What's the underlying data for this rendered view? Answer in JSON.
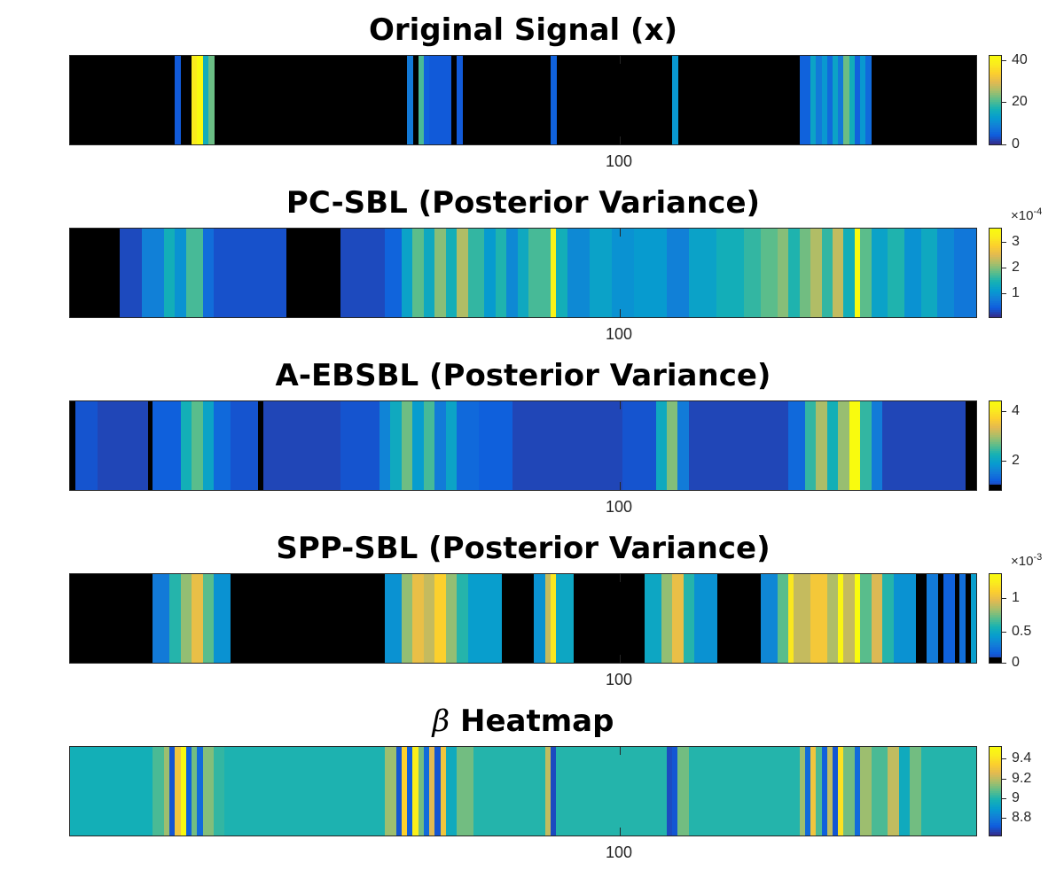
{
  "chart_data": [
    {
      "type": "heatmap",
      "title": "Original Signal (x)",
      "xtick": "100",
      "colorbar": {
        "min": 0,
        "max": 42,
        "ticks": [
          0,
          20,
          40
        ],
        "tick_labels": [
          "0",
          "20",
          "40"
        ],
        "exponent": ""
      },
      "zero_color": "#000000",
      "x_range": [
        1,
        164
      ],
      "cells": [
        {
          "from": 20,
          "to": 20,
          "value": 4
        },
        {
          "from": 23,
          "to": 23,
          "value": 38
        },
        {
          "from": 24,
          "to": 24,
          "value": 42
        },
        {
          "from": 25,
          "to": 25,
          "value": 16
        },
        {
          "from": 26,
          "to": 26,
          "value": 22
        },
        {
          "from": 62,
          "to": 62,
          "value": 8
        },
        {
          "from": 64,
          "to": 64,
          "value": 20
        },
        {
          "from": 65,
          "to": 65,
          "value": 5
        },
        {
          "from": 66,
          "to": 69,
          "value": 4
        },
        {
          "from": 71,
          "to": 71,
          "value": 4
        },
        {
          "from": 88,
          "to": 88,
          "value": 5
        },
        {
          "from": 110,
          "to": 110,
          "value": 12
        },
        {
          "from": 133,
          "to": 134,
          "value": 5
        },
        {
          "from": 135,
          "to": 135,
          "value": 14
        },
        {
          "from": 136,
          "to": 136,
          "value": 8
        },
        {
          "from": 137,
          "to": 137,
          "value": 12
        },
        {
          "from": 138,
          "to": 138,
          "value": 6
        },
        {
          "from": 139,
          "to": 139,
          "value": 14
        },
        {
          "from": 140,
          "to": 140,
          "value": 8
        },
        {
          "from": 141,
          "to": 141,
          "value": 22
        },
        {
          "from": 142,
          "to": 142,
          "value": 16
        },
        {
          "from": 143,
          "to": 143,
          "value": 5
        },
        {
          "from": 144,
          "to": 144,
          "value": 12
        },
        {
          "from": 145,
          "to": 145,
          "value": 6
        }
      ]
    },
    {
      "type": "heatmap",
      "title": "PC-SBL (Posterior Variance)",
      "xtick": "100",
      "colorbar": {
        "min": 0.08,
        "max": 3.5,
        "ticks": [
          1,
          2,
          3
        ],
        "tick_labels": [
          "1",
          "2",
          "3"
        ],
        "exponent": "-4"
      },
      "zero_color": "#000000",
      "x_range": [
        1,
        164
      ],
      "cells": [
        {
          "from": 10,
          "to": 13,
          "value": 0.3
        },
        {
          "from": 14,
          "to": 17,
          "value": 0.8
        },
        {
          "from": 18,
          "to": 19,
          "value": 1.4
        },
        {
          "from": 20,
          "to": 21,
          "value": 1.0
        },
        {
          "from": 22,
          "to": 24,
          "value": 1.7
        },
        {
          "from": 25,
          "to": 26,
          "value": 0.6
        },
        {
          "from": 27,
          "to": 39,
          "value": 0.35
        },
        {
          "from": 50,
          "to": 57,
          "value": 0.3
        },
        {
          "from": 58,
          "to": 60,
          "value": 0.5
        },
        {
          "from": 61,
          "to": 62,
          "value": 1.2
        },
        {
          "from": 63,
          "to": 64,
          "value": 1.8
        },
        {
          "from": 65,
          "to": 66,
          "value": 1.3
        },
        {
          "from": 67,
          "to": 68,
          "value": 2.0
        },
        {
          "from": 69,
          "to": 70,
          "value": 1.4
        },
        {
          "from": 71,
          "to": 72,
          "value": 2.2
        },
        {
          "from": 73,
          "to": 75,
          "value": 1.6
        },
        {
          "from": 76,
          "to": 77,
          "value": 1.1
        },
        {
          "from": 78,
          "to": 79,
          "value": 1.5
        },
        {
          "from": 80,
          "to": 81,
          "value": 0.9
        },
        {
          "from": 82,
          "to": 83,
          "value": 1.3
        },
        {
          "from": 84,
          "to": 87,
          "value": 1.7
        },
        {
          "from": 88,
          "to": 88,
          "value": 3.3
        },
        {
          "from": 89,
          "to": 90,
          "value": 1.4
        },
        {
          "from": 91,
          "to": 94,
          "value": 0.9
        },
        {
          "from": 95,
          "to": 98,
          "value": 1.2
        },
        {
          "from": 99,
          "to": 102,
          "value": 1.0
        },
        {
          "from": 103,
          "to": 108,
          "value": 1.1
        },
        {
          "from": 109,
          "to": 112,
          "value": 0.8
        },
        {
          "from": 113,
          "to": 117,
          "value": 1.2
        },
        {
          "from": 118,
          "to": 122,
          "value": 1.4
        },
        {
          "from": 123,
          "to": 125,
          "value": 1.6
        },
        {
          "from": 126,
          "to": 128,
          "value": 1.8
        },
        {
          "from": 129,
          "to": 130,
          "value": 2.0
        },
        {
          "from": 131,
          "to": 132,
          "value": 1.5
        },
        {
          "from": 133,
          "to": 134,
          "value": 1.9
        },
        {
          "from": 135,
          "to": 136,
          "value": 2.2
        },
        {
          "from": 137,
          "to": 138,
          "value": 1.6
        },
        {
          "from": 139,
          "to": 140,
          "value": 2.3
        },
        {
          "from": 141,
          "to": 142,
          "value": 1.4
        },
        {
          "from": 143,
          "to": 143,
          "value": 3.5
        },
        {
          "from": 144,
          "to": 145,
          "value": 1.8
        },
        {
          "from": 146,
          "to": 148,
          "value": 1.2
        },
        {
          "from": 149,
          "to": 151,
          "value": 1.5
        },
        {
          "from": 152,
          "to": 154,
          "value": 1.0
        },
        {
          "from": 155,
          "to": 157,
          "value": 1.3
        },
        {
          "from": 158,
          "to": 160,
          "value": 0.9
        },
        {
          "from": 161,
          "to": 164,
          "value": 0.7
        }
      ]
    },
    {
      "type": "heatmap",
      "title": "A-EBSBL (Posterior Variance)",
      "xtick": "100",
      "colorbar": {
        "min": 0.8,
        "max": 4.4,
        "ticks": [
          2,
          4
        ],
        "tick_labels": [
          "2",
          "4"
        ],
        "exponent": ""
      },
      "zero_color": "#000000",
      "x_range": [
        1,
        164
      ],
      "cells": [
        {
          "from": 2,
          "to": 5,
          "value": 1.1
        },
        {
          "from": 6,
          "to": 14,
          "value": 1.0
        },
        {
          "from": 16,
          "to": 20,
          "value": 1.2
        },
        {
          "from": 21,
          "to": 22,
          "value": 2.2
        },
        {
          "from": 23,
          "to": 24,
          "value": 2.6
        },
        {
          "from": 25,
          "to": 26,
          "value": 2.0
        },
        {
          "from": 27,
          "to": 29,
          "value": 1.3
        },
        {
          "from": 30,
          "to": 34,
          "value": 1.1
        },
        {
          "from": 36,
          "to": 49,
          "value": 1.0
        },
        {
          "from": 50,
          "to": 56,
          "value": 1.1
        },
        {
          "from": 57,
          "to": 58,
          "value": 1.6
        },
        {
          "from": 59,
          "to": 60,
          "value": 2.1
        },
        {
          "from": 61,
          "to": 62,
          "value": 2.7
        },
        {
          "from": 63,
          "to": 64,
          "value": 1.9
        },
        {
          "from": 65,
          "to": 66,
          "value": 2.5
        },
        {
          "from": 67,
          "to": 68,
          "value": 1.5
        },
        {
          "from": 69,
          "to": 70,
          "value": 2.0
        },
        {
          "from": 71,
          "to": 74,
          "value": 1.3
        },
        {
          "from": 75,
          "to": 80,
          "value": 1.2
        },
        {
          "from": 81,
          "to": 100,
          "value": 1.0
        },
        {
          "from": 101,
          "to": 106,
          "value": 1.1
        },
        {
          "from": 107,
          "to": 108,
          "value": 2.1
        },
        {
          "from": 109,
          "to": 110,
          "value": 2.8
        },
        {
          "from": 111,
          "to": 112,
          "value": 1.5
        },
        {
          "from": 113,
          "to": 130,
          "value": 1.0
        },
        {
          "from": 131,
          "to": 133,
          "value": 1.3
        },
        {
          "from": 134,
          "to": 135,
          "value": 2.4
        },
        {
          "from": 136,
          "to": 137,
          "value": 3.0
        },
        {
          "from": 138,
          "to": 139,
          "value": 2.2
        },
        {
          "from": 140,
          "to": 141,
          "value": 2.9
        },
        {
          "from": 142,
          "to": 143,
          "value": 4.4
        },
        {
          "from": 144,
          "to": 145,
          "value": 2.4
        },
        {
          "from": 146,
          "to": 147,
          "value": 1.5
        },
        {
          "from": 148,
          "to": 162,
          "value": 1.0
        }
      ]
    },
    {
      "type": "heatmap",
      "title": "SPP-SBL (Posterior Variance)",
      "xtick": "100",
      "colorbar": {
        "min": 0.05,
        "max": 1.35,
        "ticks": [
          0,
          0.5,
          1
        ],
        "tick_labels": [
          "0",
          "0.5",
          "1"
        ],
        "exponent": "-3"
      },
      "zero_color": "#000000",
      "x_range": [
        1,
        164
      ],
      "cells": [
        {
          "from": 16,
          "to": 18,
          "value": 0.3
        },
        {
          "from": 19,
          "to": 20,
          "value": 0.6
        },
        {
          "from": 21,
          "to": 22,
          "value": 0.8
        },
        {
          "from": 23,
          "to": 24,
          "value": 1.0
        },
        {
          "from": 25,
          "to": 26,
          "value": 0.7
        },
        {
          "from": 27,
          "to": 29,
          "value": 0.4
        },
        {
          "from": 58,
          "to": 60,
          "value": 0.4
        },
        {
          "from": 61,
          "to": 62,
          "value": 0.8
        },
        {
          "from": 63,
          "to": 64,
          "value": 1.0
        },
        {
          "from": 65,
          "to": 66,
          "value": 0.9
        },
        {
          "from": 67,
          "to": 68,
          "value": 1.1
        },
        {
          "from": 69,
          "to": 70,
          "value": 0.8
        },
        {
          "from": 71,
          "to": 72,
          "value": 0.6
        },
        {
          "from": 73,
          "to": 78,
          "value": 0.45
        },
        {
          "from": 85,
          "to": 86,
          "value": 0.4
        },
        {
          "from": 87,
          "to": 87,
          "value": 0.9
        },
        {
          "from": 88,
          "to": 88,
          "value": 1.2
        },
        {
          "from": 89,
          "to": 91,
          "value": 0.5
        },
        {
          "from": 105,
          "to": 107,
          "value": 0.5
        },
        {
          "from": 108,
          "to": 109,
          "value": 0.8
        },
        {
          "from": 110,
          "to": 111,
          "value": 1.0
        },
        {
          "from": 112,
          "to": 113,
          "value": 0.6
        },
        {
          "from": 114,
          "to": 117,
          "value": 0.4
        },
        {
          "from": 126,
          "to": 128,
          "value": 0.35
        },
        {
          "from": 129,
          "to": 130,
          "value": 0.7
        },
        {
          "from": 131,
          "to": 131,
          "value": 1.2
        },
        {
          "from": 132,
          "to": 134,
          "value": 0.9
        },
        {
          "from": 135,
          "to": 137,
          "value": 1.05
        },
        {
          "from": 138,
          "to": 139,
          "value": 0.85
        },
        {
          "from": 140,
          "to": 140,
          "value": 1.3
        },
        {
          "from": 141,
          "to": 142,
          "value": 0.9
        },
        {
          "from": 143,
          "to": 143,
          "value": 1.35
        },
        {
          "from": 144,
          "to": 145,
          "value": 0.7
        },
        {
          "from": 146,
          "to": 147,
          "value": 0.95
        },
        {
          "from": 148,
          "to": 149,
          "value": 0.6
        },
        {
          "from": 150,
          "to": 153,
          "value": 0.4
        },
        {
          "from": 156,
          "to": 157,
          "value": 0.3
        },
        {
          "from": 159,
          "to": 160,
          "value": 0.2
        },
        {
          "from": 162,
          "to": 162,
          "value": 0.25
        },
        {
          "from": 164,
          "to": 164,
          "value": 0.45
        }
      ]
    },
    {
      "type": "heatmap",
      "title": "β Heatmap",
      "title_symbol": "β",
      "title_text": " Heatmap",
      "xtick": "100",
      "colorbar": {
        "min": 8.62,
        "max": 9.52,
        "ticks": [
          8.8,
          9,
          9.2,
          9.4
        ],
        "tick_labels": [
          "8.8",
          "9",
          "9.2",
          "9.4"
        ],
        "exponent": ""
      },
      "zero_color": "#000000",
      "x_range": [
        1,
        164
      ],
      "background_value": 8.98,
      "cells": [
        {
          "from": 1,
          "to": 15,
          "value": 8.97
        },
        {
          "from": 16,
          "to": 17,
          "value": 9.05
        },
        {
          "from": 18,
          "to": 18,
          "value": 9.15
        },
        {
          "from": 19,
          "to": 19,
          "value": 8.7
        },
        {
          "from": 20,
          "to": 20,
          "value": 9.3
        },
        {
          "from": 21,
          "to": 21,
          "value": 9.5
        },
        {
          "from": 22,
          "to": 22,
          "value": 8.72
        },
        {
          "from": 23,
          "to": 23,
          "value": 9.1
        },
        {
          "from": 24,
          "to": 24,
          "value": 8.75
        },
        {
          "from": 25,
          "to": 26,
          "value": 9.12
        },
        {
          "from": 27,
          "to": 28,
          "value": 9.02
        },
        {
          "from": 29,
          "to": 57,
          "value": 8.99
        },
        {
          "from": 58,
          "to": 59,
          "value": 9.15
        },
        {
          "from": 60,
          "to": 60,
          "value": 8.7
        },
        {
          "from": 61,
          "to": 61,
          "value": 9.35
        },
        {
          "from": 62,
          "to": 62,
          "value": 8.72
        },
        {
          "from": 63,
          "to": 63,
          "value": 9.45
        },
        {
          "from": 64,
          "to": 64,
          "value": 9.1
        },
        {
          "from": 65,
          "to": 65,
          "value": 8.75
        },
        {
          "from": 66,
          "to": 66,
          "value": 9.25
        },
        {
          "from": 67,
          "to": 67,
          "value": 8.7
        },
        {
          "from": 68,
          "to": 68,
          "value": 9.3
        },
        {
          "from": 69,
          "to": 70,
          "value": 8.95
        },
        {
          "from": 71,
          "to": 73,
          "value": 9.1
        },
        {
          "from": 74,
          "to": 86,
          "value": 9.0
        },
        {
          "from": 87,
          "to": 87,
          "value": 9.2
        },
        {
          "from": 88,
          "to": 88,
          "value": 8.68
        },
        {
          "from": 89,
          "to": 108,
          "value": 9.0
        },
        {
          "from": 109,
          "to": 109,
          "value": 8.68
        },
        {
          "from": 110,
          "to": 110,
          "value": 8.7
        },
        {
          "from": 111,
          "to": 112,
          "value": 9.1
        },
        {
          "from": 113,
          "to": 132,
          "value": 9.0
        },
        {
          "from": 133,
          "to": 133,
          "value": 9.15
        },
        {
          "from": 134,
          "to": 134,
          "value": 8.75
        },
        {
          "from": 135,
          "to": 135,
          "value": 9.3
        },
        {
          "from": 136,
          "to": 136,
          "value": 9.05
        },
        {
          "from": 137,
          "to": 137,
          "value": 8.72
        },
        {
          "from": 138,
          "to": 138,
          "value": 9.2
        },
        {
          "from": 139,
          "to": 139,
          "value": 8.7
        },
        {
          "from": 140,
          "to": 140,
          "value": 9.4
        },
        {
          "from": 141,
          "to": 142,
          "value": 9.1
        },
        {
          "from": 143,
          "to": 143,
          "value": 8.75
        },
        {
          "from": 144,
          "to": 145,
          "value": 9.15
        },
        {
          "from": 146,
          "to": 148,
          "value": 9.05
        },
        {
          "from": 149,
          "to": 150,
          "value": 9.2
        },
        {
          "from": 151,
          "to": 152,
          "value": 8.95
        },
        {
          "from": 153,
          "to": 154,
          "value": 9.1
        },
        {
          "from": 155,
          "to": 164,
          "value": 9.0
        }
      ]
    }
  ]
}
